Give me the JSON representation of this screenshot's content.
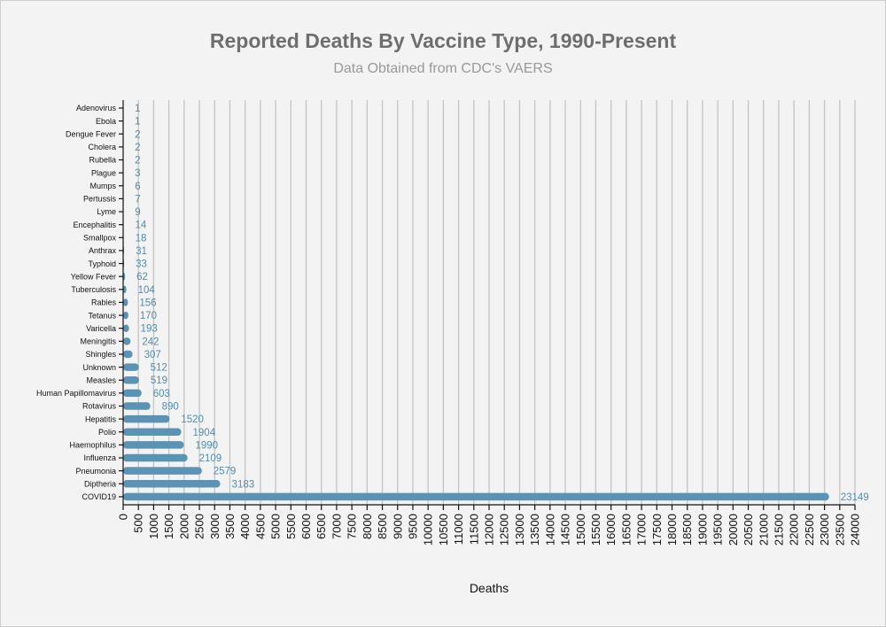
{
  "chart_data": {
    "type": "bar",
    "orientation": "horizontal",
    "title": "Reported Deaths By Vaccine Type, 1990-Present",
    "subtitle": "Data Obtained from CDC's VAERS",
    "xlabel": "Deaths",
    "ylabel": "",
    "xlim": [
      0,
      24000
    ],
    "x_ticks": [
      "0",
      "500",
      "1000",
      "1500",
      "2000",
      "2500",
      "3000",
      "3500",
      "4000",
      "4500",
      "5000",
      "5500",
      "6000",
      "6500",
      "7000",
      "7500",
      "8000",
      "8500",
      "9000",
      "9500",
      "10000",
      "10500",
      "11000",
      "11500",
      "12000",
      "12500",
      "13000",
      "13500",
      "14000",
      "14500",
      "15000",
      "15500",
      "16000",
      "16500",
      "17000",
      "17500",
      "18000",
      "18500",
      "19000",
      "19500",
      "20000",
      "20500",
      "21000",
      "21500",
      "22000",
      "22500",
      "23000",
      "23500",
      "24000"
    ],
    "grid": true,
    "legend": "none",
    "bar_color": "#5b93b4",
    "label_color": "#4f8db0",
    "categories": [
      "Adenovirus",
      "Ebola",
      "Dengue Fever",
      "Cholera",
      "Rubella",
      "Plague",
      "Mumps",
      "Pertussis",
      "Lyme",
      "Encephalitis",
      "Smallpox",
      "Anthrax",
      "Typhoid",
      "Yellow Fever",
      "Tuberculosis",
      "Rabies",
      "Tetanus",
      "Varicella",
      "Meningitis",
      "Shingles",
      "Unknown",
      "Measles",
      "Human Papillomavirus",
      "Rotavirus",
      "Hepatitis",
      "Polio",
      "Haemophilus",
      "Influenza",
      "Pneumonia",
      "Diptheria",
      "COVID19"
    ],
    "values": [
      1,
      1,
      2,
      2,
      2,
      3,
      6,
      7,
      9,
      14,
      18,
      31,
      33,
      62,
      104,
      156,
      170,
      193,
      242,
      307,
      512,
      519,
      603,
      890,
      1520,
      1904,
      1990,
      2109,
      2579,
      3183,
      23149
    ]
  }
}
